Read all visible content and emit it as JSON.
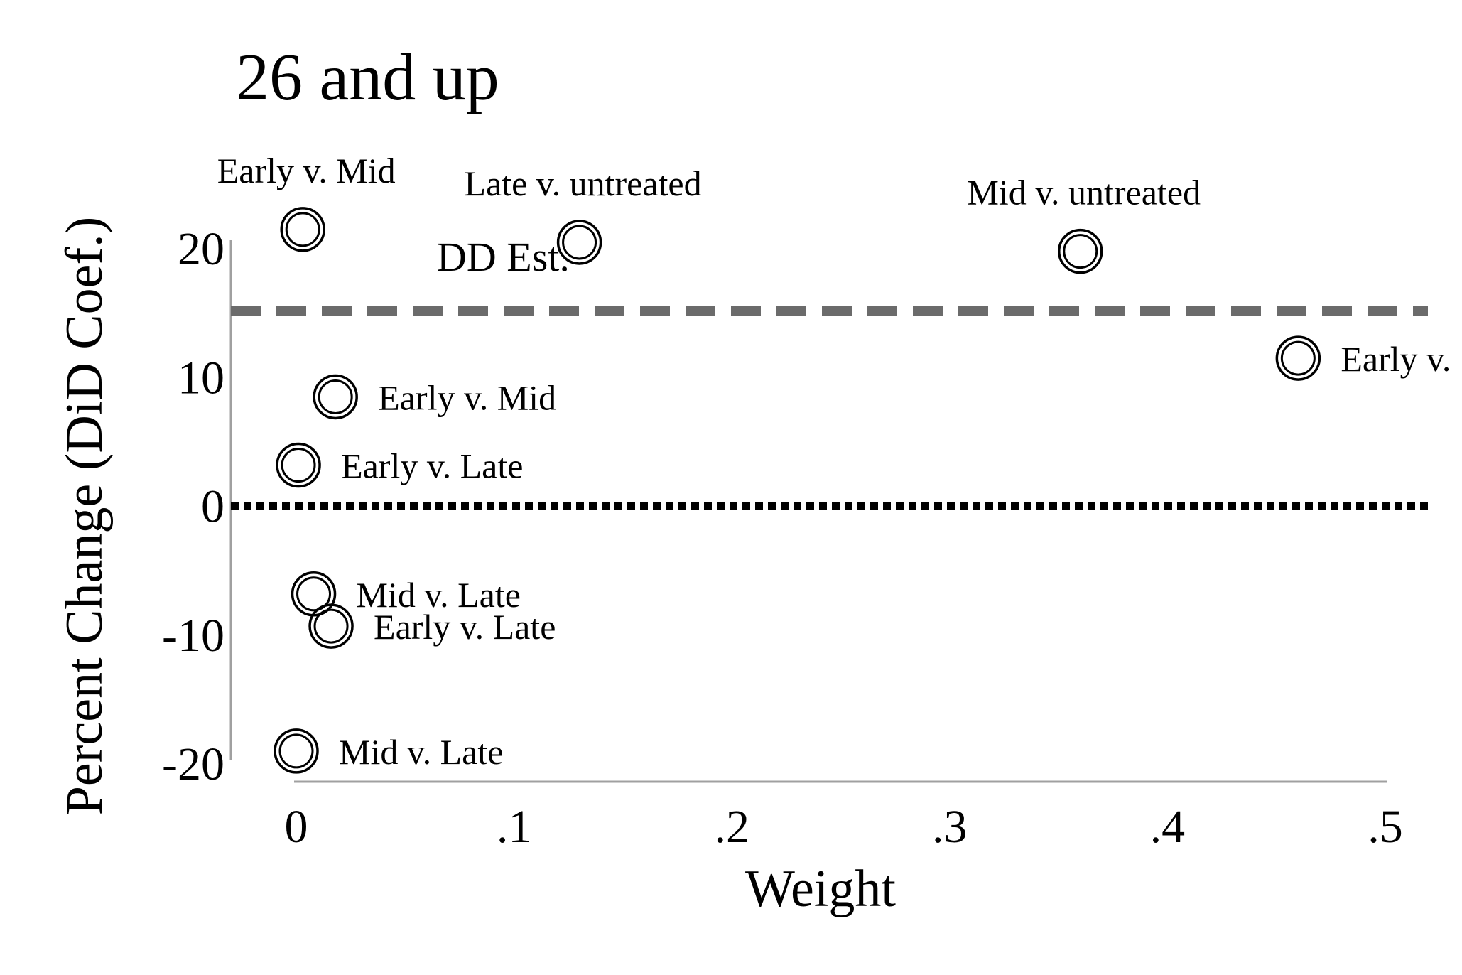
{
  "chart_data": {
    "type": "scatter",
    "title": "26 and up",
    "xlabel": "Weight",
    "ylabel": "Percent Change (DiD Coef.)",
    "xlim": [
      0,
      0.5
    ],
    "ylim": [
      -20,
      20
    ],
    "x_ticks": [
      {
        "value": 0,
        "label": "0"
      },
      {
        "value": 0.1,
        "label": ".1"
      },
      {
        "value": 0.2,
        "label": ".2"
      },
      {
        "value": 0.3,
        "label": ".3"
      },
      {
        "value": 0.4,
        "label": ".4"
      },
      {
        "value": 0.5,
        "label": ".5"
      }
    ],
    "y_ticks": [
      {
        "value": 20,
        "label": "20"
      },
      {
        "value": 10,
        "label": "10"
      },
      {
        "value": 0,
        "label": "0"
      },
      {
        "value": -10,
        "label": "-10"
      },
      {
        "value": -20,
        "label": "-20"
      }
    ],
    "reference_lines": [
      {
        "y": 15.2,
        "style": "dashed",
        "color": "#6b6b6b",
        "label": "DD Est."
      },
      {
        "y": 0,
        "style": "dotted",
        "color": "#000000",
        "label": ""
      }
    ],
    "points": [
      {
        "x": 0.003,
        "y": 21.5,
        "label": "Early v. Mid",
        "label_pos": "above"
      },
      {
        "x": 0.13,
        "y": 20.5,
        "label": "Late v. untreated",
        "label_pos": "above"
      },
      {
        "x": 0.36,
        "y": 19.8,
        "label": "Mid v. untreated",
        "label_pos": "above"
      },
      {
        "x": 0.46,
        "y": 11.5,
        "label": "Early v.",
        "label_pos": "right"
      },
      {
        "x": 0.018,
        "y": 8.5,
        "label": "Early v. Mid",
        "label_pos": "right"
      },
      {
        "x": 0.001,
        "y": 3.2,
        "label": "Early v. Late",
        "label_pos": "right"
      },
      {
        "x": 0.008,
        "y": -6.8,
        "label": "Mid v. Late",
        "label_pos": "right"
      },
      {
        "x": 0.016,
        "y": -9.3,
        "label": "Early v. Late",
        "label_pos": "right"
      },
      {
        "x": 0.0,
        "y": -19.0,
        "label": "Mid v. Late",
        "label_pos": "right"
      }
    ],
    "colors": {
      "axis": "#a0a0a0",
      "marker": "#000000",
      "dd_line": "#6b6b6b",
      "zero_line": "#000000"
    }
  }
}
